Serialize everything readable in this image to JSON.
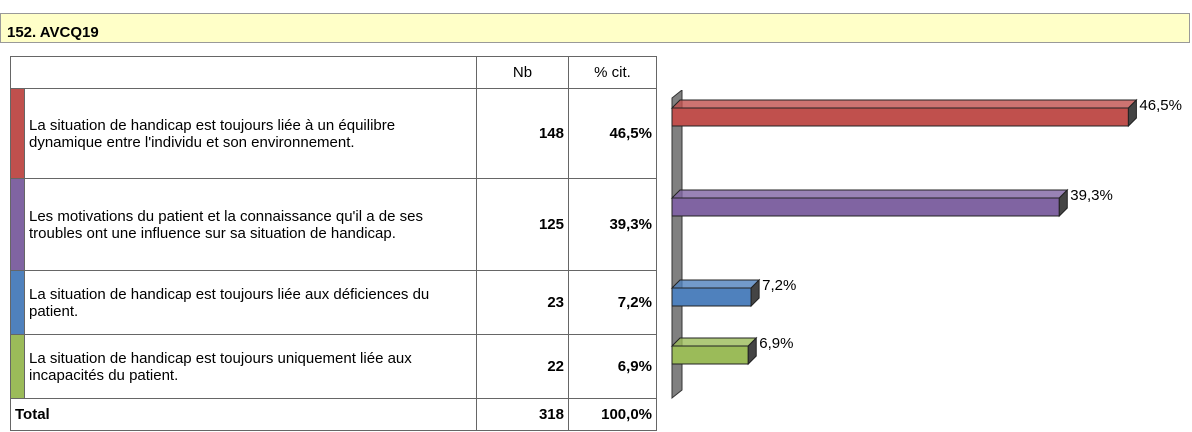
{
  "header": {
    "title": "152. AVCQ19"
  },
  "table": {
    "columns": [
      "Nb",
      "% cit."
    ],
    "rows": [
      {
        "label": "La situation de handicap est  toujours liée à un équilibre dynamique entre l'individu et son environnement.",
        "nb": 148,
        "pct": "46,5%"
      },
      {
        "label": "Les motivations du patient  et la connaissance qu'il a de ses troubles ont une influence sur sa situation de handicap.",
        "nb": 125,
        "pct": "39,3%"
      },
      {
        "label": "La situation de  handicap est toujours liée aux déficiences du patient.",
        "nb": 23,
        "pct": "7,2%"
      },
      {
        "label": "La situation de handicap est toujours uniquement  liée aux incapacités du patient.",
        "nb": 22,
        "pct": "6,9%"
      }
    ],
    "total": {
      "label": "Total",
      "nb": 318,
      "pct": "100,0%"
    }
  },
  "chart_data": {
    "type": "bar3d",
    "values": [
      46.5,
      39.3,
      7.2,
      6.9
    ],
    "value_labels": [
      "46,5%",
      "39,3%",
      "7,2%",
      "6,9%"
    ],
    "colors": [
      "#c0504d",
      "#8064a2",
      "#4f81bd",
      "#9bbb59"
    ]
  }
}
